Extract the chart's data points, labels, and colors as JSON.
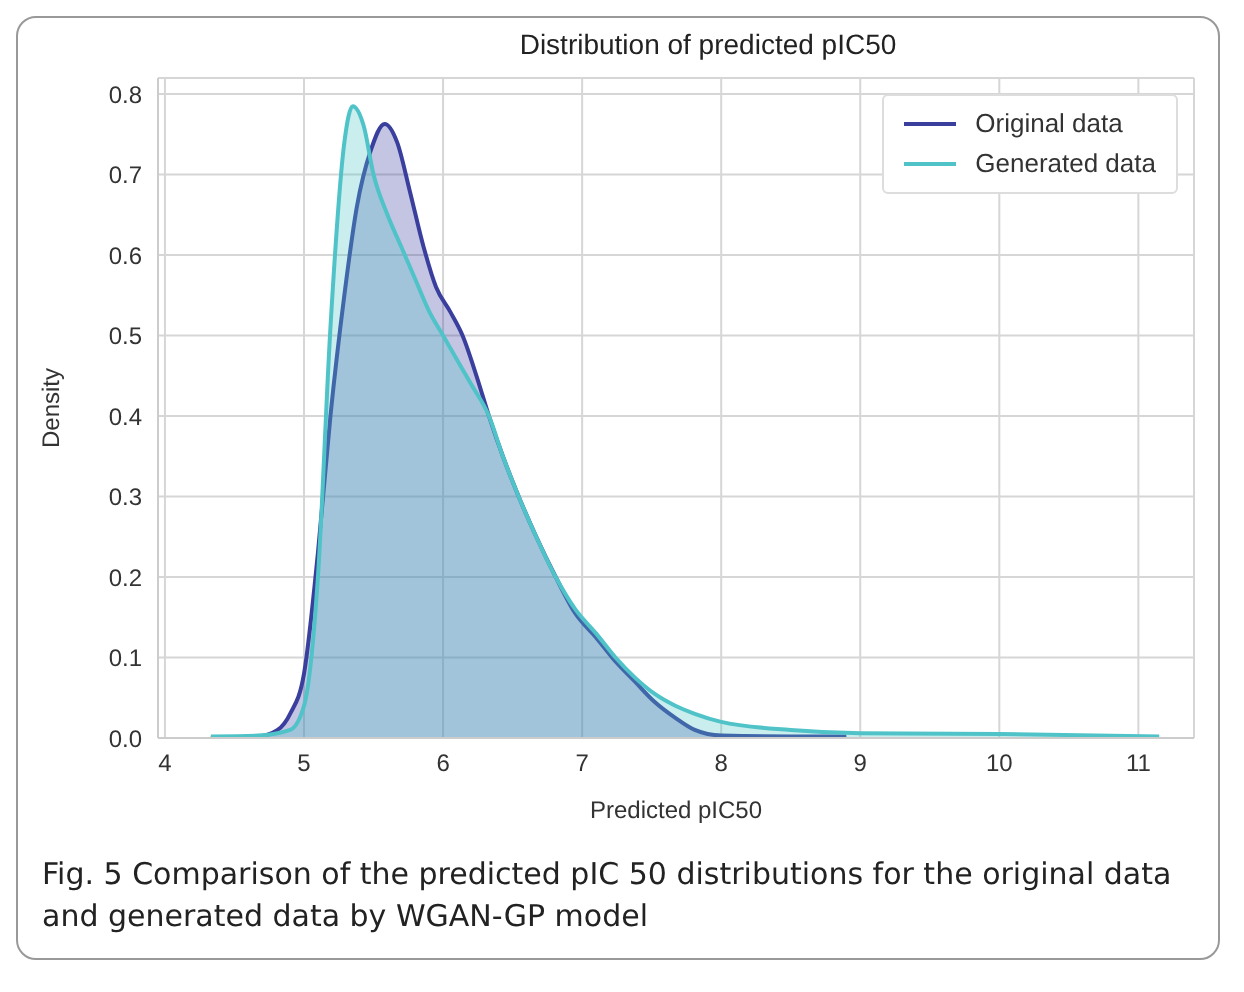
{
  "chart_data": {
    "type": "area",
    "title": "Distribution of predicted pIC50",
    "xlabel": "Predicted pIC50",
    "ylabel": "Density",
    "xlim": [
      3.95,
      11.4
    ],
    "xticks": [
      4,
      5,
      6,
      7,
      8,
      9,
      10,
      11
    ],
    "ylim": [
      0,
      0.82
    ],
    "yticks": [
      {
        "value": 0,
        "label": "0.0"
      },
      0.1,
      0.2,
      0.3,
      0.4,
      0.5,
      0.6,
      0.7,
      0.8
    ],
    "grid": true,
    "legend": "top right",
    "line_style": "solid",
    "marker": "none",
    "annotations": [
      "Fig. 5  Comparison of the predicted pIC 50 distributions for the original data and generated data by WGAN-GP model"
    ],
    "series": [
      {
        "name": "Original data",
        "color": "#3a3f9e",
        "x": [
          4.33,
          4.67,
          4.81,
          4.9,
          5.0,
          5.1,
          5.19,
          5.29,
          5.38,
          5.48,
          5.58,
          5.67,
          5.76,
          5.86,
          5.95,
          6.05,
          6.14,
          6.24,
          6.33,
          6.43,
          6.52,
          6.67,
          6.81,
          6.95,
          7.1,
          7.24,
          7.38,
          7.52,
          7.67,
          7.81,
          8.0,
          8.5,
          8.9
        ],
        "values": [
          0,
          0.002,
          0.01,
          0.03,
          0.08,
          0.23,
          0.4,
          0.55,
          0.66,
          0.73,
          0.763,
          0.74,
          0.68,
          0.61,
          0.56,
          0.53,
          0.5,
          0.45,
          0.4,
          0.35,
          0.31,
          0.25,
          0.2,
          0.155,
          0.125,
          0.095,
          0.07,
          0.045,
          0.025,
          0.01,
          0.003,
          0.002,
          0.002
        ]
      },
      {
        "name": "Generated data",
        "color": "#4fc3c8",
        "x": [
          4.33,
          4.67,
          4.9,
          5.0,
          5.1,
          5.19,
          5.29,
          5.35,
          5.43,
          5.5,
          5.6,
          5.7,
          5.8,
          5.9,
          6.0,
          6.1,
          6.2,
          6.33,
          6.43,
          6.52,
          6.67,
          6.81,
          6.95,
          7.1,
          7.24,
          7.38,
          7.52,
          7.67,
          7.81,
          8.0,
          8.5,
          9.0,
          10.0,
          11.15
        ],
        "values": [
          0.002,
          0.003,
          0.01,
          0.04,
          0.2,
          0.51,
          0.74,
          0.785,
          0.76,
          0.7,
          0.65,
          0.61,
          0.57,
          0.53,
          0.5,
          0.47,
          0.44,
          0.4,
          0.35,
          0.31,
          0.25,
          0.2,
          0.16,
          0.13,
          0.1,
          0.075,
          0.055,
          0.04,
          0.03,
          0.02,
          0.01,
          0.006,
          0.005,
          0.002
        ]
      }
    ]
  }
}
